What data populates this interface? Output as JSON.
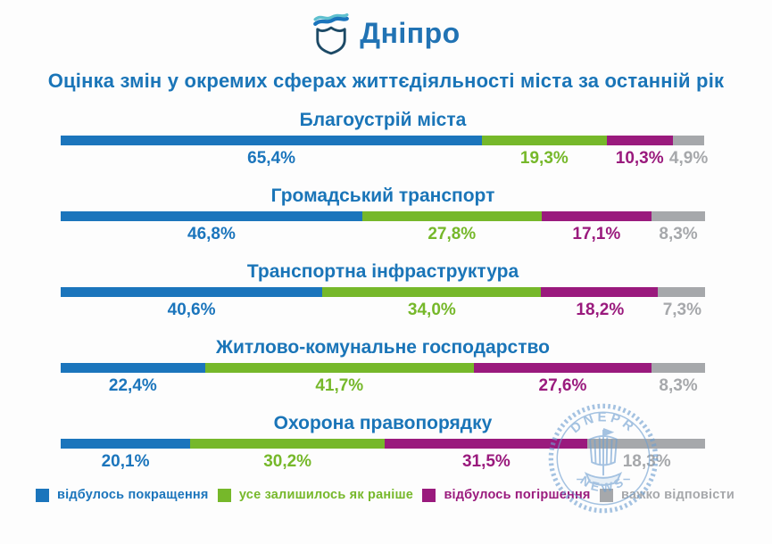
{
  "header": {
    "logo_text": "Дніпро"
  },
  "title": "Оцінка змін у окремих сферах життєдіяльності міста за останній рік",
  "chart_data": {
    "type": "bar",
    "orientation": "horizontal-stacked",
    "title": "Оцінка змін у окремих сферах життєдіяльності міста за останній рік",
    "categories": [
      "Благоустрій міста",
      "Громадський транспорт",
      "Транспортна інфраструктура",
      "Житлово-комунальне господарство",
      "Охорона правопорядку"
    ],
    "series": [
      {
        "name": "відбулось покращення",
        "color": "#1b75bc",
        "values": [
          65.4,
          46.8,
          40.6,
          22.4,
          20.1
        ]
      },
      {
        "name": "усе залишилось як раніше",
        "color": "#76b82a",
        "values": [
          19.3,
          27.8,
          34.0,
          41.7,
          30.2
        ]
      },
      {
        "name": "відбулось погіршення",
        "color": "#9a1a7d",
        "values": [
          10.3,
          17.1,
          18.2,
          27.6,
          31.5
        ]
      },
      {
        "name": "важко відповісти",
        "color": "#a6a8ab",
        "values": [
          4.9,
          8.3,
          7.3,
          8.3,
          18.3
        ]
      }
    ],
    "value_labels": [
      [
        "65,4%",
        "19,3%",
        "10,3%",
        "4,9%"
      ],
      [
        "46,8%",
        "27,8%",
        "17,1%",
        "8,3%"
      ],
      [
        "40,6%",
        "34,0%",
        "18,2%",
        "7,3%"
      ],
      [
        "22,4%",
        "41,7%",
        "27,6%",
        "8,3%"
      ],
      [
        "20,1%",
        "30,2%",
        "31,5%",
        "18,3%"
      ]
    ],
    "xlim": [
      0,
      100
    ],
    "grid": false,
    "legend_position": "bottom"
  },
  "watermark": {
    "top_text": "DNEPR",
    "bottom_text": "NEWS",
    "color": "#6f9fd0"
  },
  "colors": {
    "title_blue": "#1a75b8",
    "logo_blue": "#2173b4"
  }
}
